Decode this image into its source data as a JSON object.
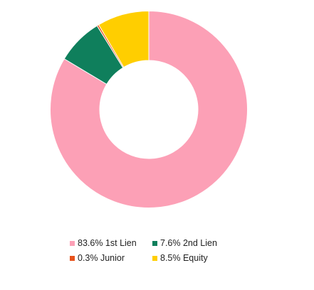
{
  "chart_data": {
    "type": "pie",
    "donut": true,
    "title": "",
    "legend_position": "bottom",
    "slices": [
      {
        "label": "1st Lien",
        "value": 83.6,
        "legend_text": "83.6% 1st Lien",
        "color": "#FCA0B6"
      },
      {
        "label": "2nd Lien",
        "value": 7.6,
        "legend_text": "7.6% 2nd Lien",
        "color": "#0F7F5C"
      },
      {
        "label": "Junior",
        "value": 0.3,
        "legend_text": "0.3% Junior",
        "color": "#E8521B"
      },
      {
        "label": "Equity",
        "value": 8.5,
        "legend_text": "8.5% Equity",
        "color": "#FFCE00"
      }
    ]
  }
}
